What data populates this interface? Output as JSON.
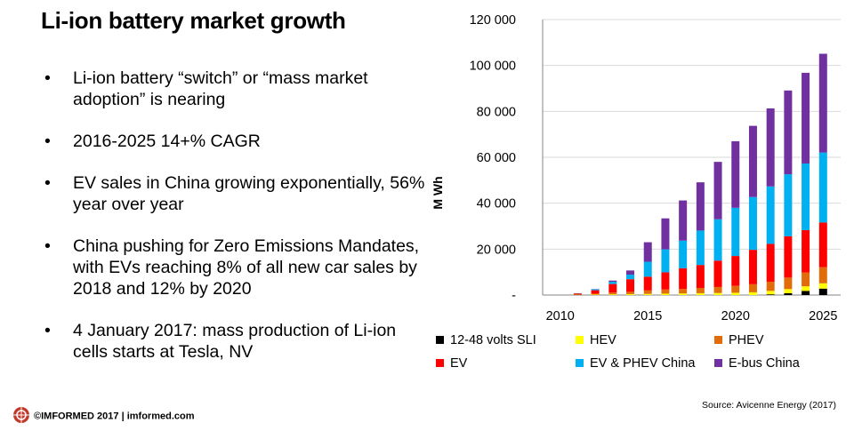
{
  "title": "Li-ion battery market growth",
  "bullets": [
    "Li-ion battery “switch” or “mass market adoption” is nearing",
    "2016-2025 14+% CAGR",
    "EV sales in China growing exponentially, 56% year over year",
    "China pushing  for Zero Emissions Mandates, with EVs reaching 8% of all new car sales by 2018 and 12% by 2020",
    "4 January 2017: mass production of Li-ion cells starts at Tesla, NV"
  ],
  "bullet_symbol": "•",
  "footer": {
    "text": "©IMFORMED 2017  |  imformed.com",
    "logo_icon": "imformed-logo-icon"
  },
  "source": "Source: Avicenne Energy (2017)",
  "chart_data": {
    "type": "bar",
    "stacked": true,
    "title": "",
    "xlabel": "",
    "ylabel": "M Wh",
    "ylim": [
      0,
      120000
    ],
    "yticks": [
      0,
      20000,
      40000,
      60000,
      80000,
      100000,
      120000
    ],
    "ytick_labels": [
      "-",
      "20 000",
      "40 000",
      "60 000",
      "80 000",
      "100 000",
      "120 000"
    ],
    "xticks": [
      2010,
      2015,
      2020,
      2025
    ],
    "x": [
      2011,
      2012,
      2013,
      2014,
      2015,
      2016,
      2017,
      2018,
      2019,
      2020,
      2021,
      2022,
      2023,
      2024,
      2025
    ],
    "grid": "horizontal",
    "legend_position": "bottom",
    "series": [
      {
        "name": "12-48 volts SLI",
        "color": "#000000",
        "values": [
          0,
          0,
          0,
          0,
          0,
          0,
          0,
          0,
          0,
          0,
          0,
          300,
          800,
          1800,
          2800
        ]
      },
      {
        "name": "HEV",
        "color": "#ffff00",
        "values": [
          100,
          200,
          300,
          400,
          500,
          600,
          700,
          800,
          900,
          1000,
          1200,
          1500,
          1800,
          2000,
          2300
        ]
      },
      {
        "name": "PHEV",
        "color": "#e36c0a",
        "values": [
          100,
          400,
          800,
          1000,
          1500,
          1800,
          2000,
          2300,
          2600,
          3000,
          3500,
          4000,
          5000,
          6000,
          7000
        ]
      },
      {
        "name": "EV",
        "color": "#ff0000",
        "values": [
          500,
          1500,
          3700,
          5500,
          6000,
          7500,
          9000,
          10000,
          11500,
          13000,
          15000,
          16500,
          18000,
          18500,
          19500
        ]
      },
      {
        "name": "EV & PHEV China",
        "color": "#00b0f0",
        "values": [
          100,
          400,
          1000,
          2000,
          6500,
          10000,
          12000,
          15000,
          18000,
          21000,
          23000,
          25000,
          27000,
          29000,
          30500
        ]
      },
      {
        "name": "E-bus China",
        "color": "#7030a0",
        "values": [
          0,
          100,
          500,
          1800,
          8500,
          13500,
          17500,
          21000,
          25000,
          29000,
          31000,
          34000,
          36500,
          39500,
          43000
        ]
      }
    ]
  }
}
